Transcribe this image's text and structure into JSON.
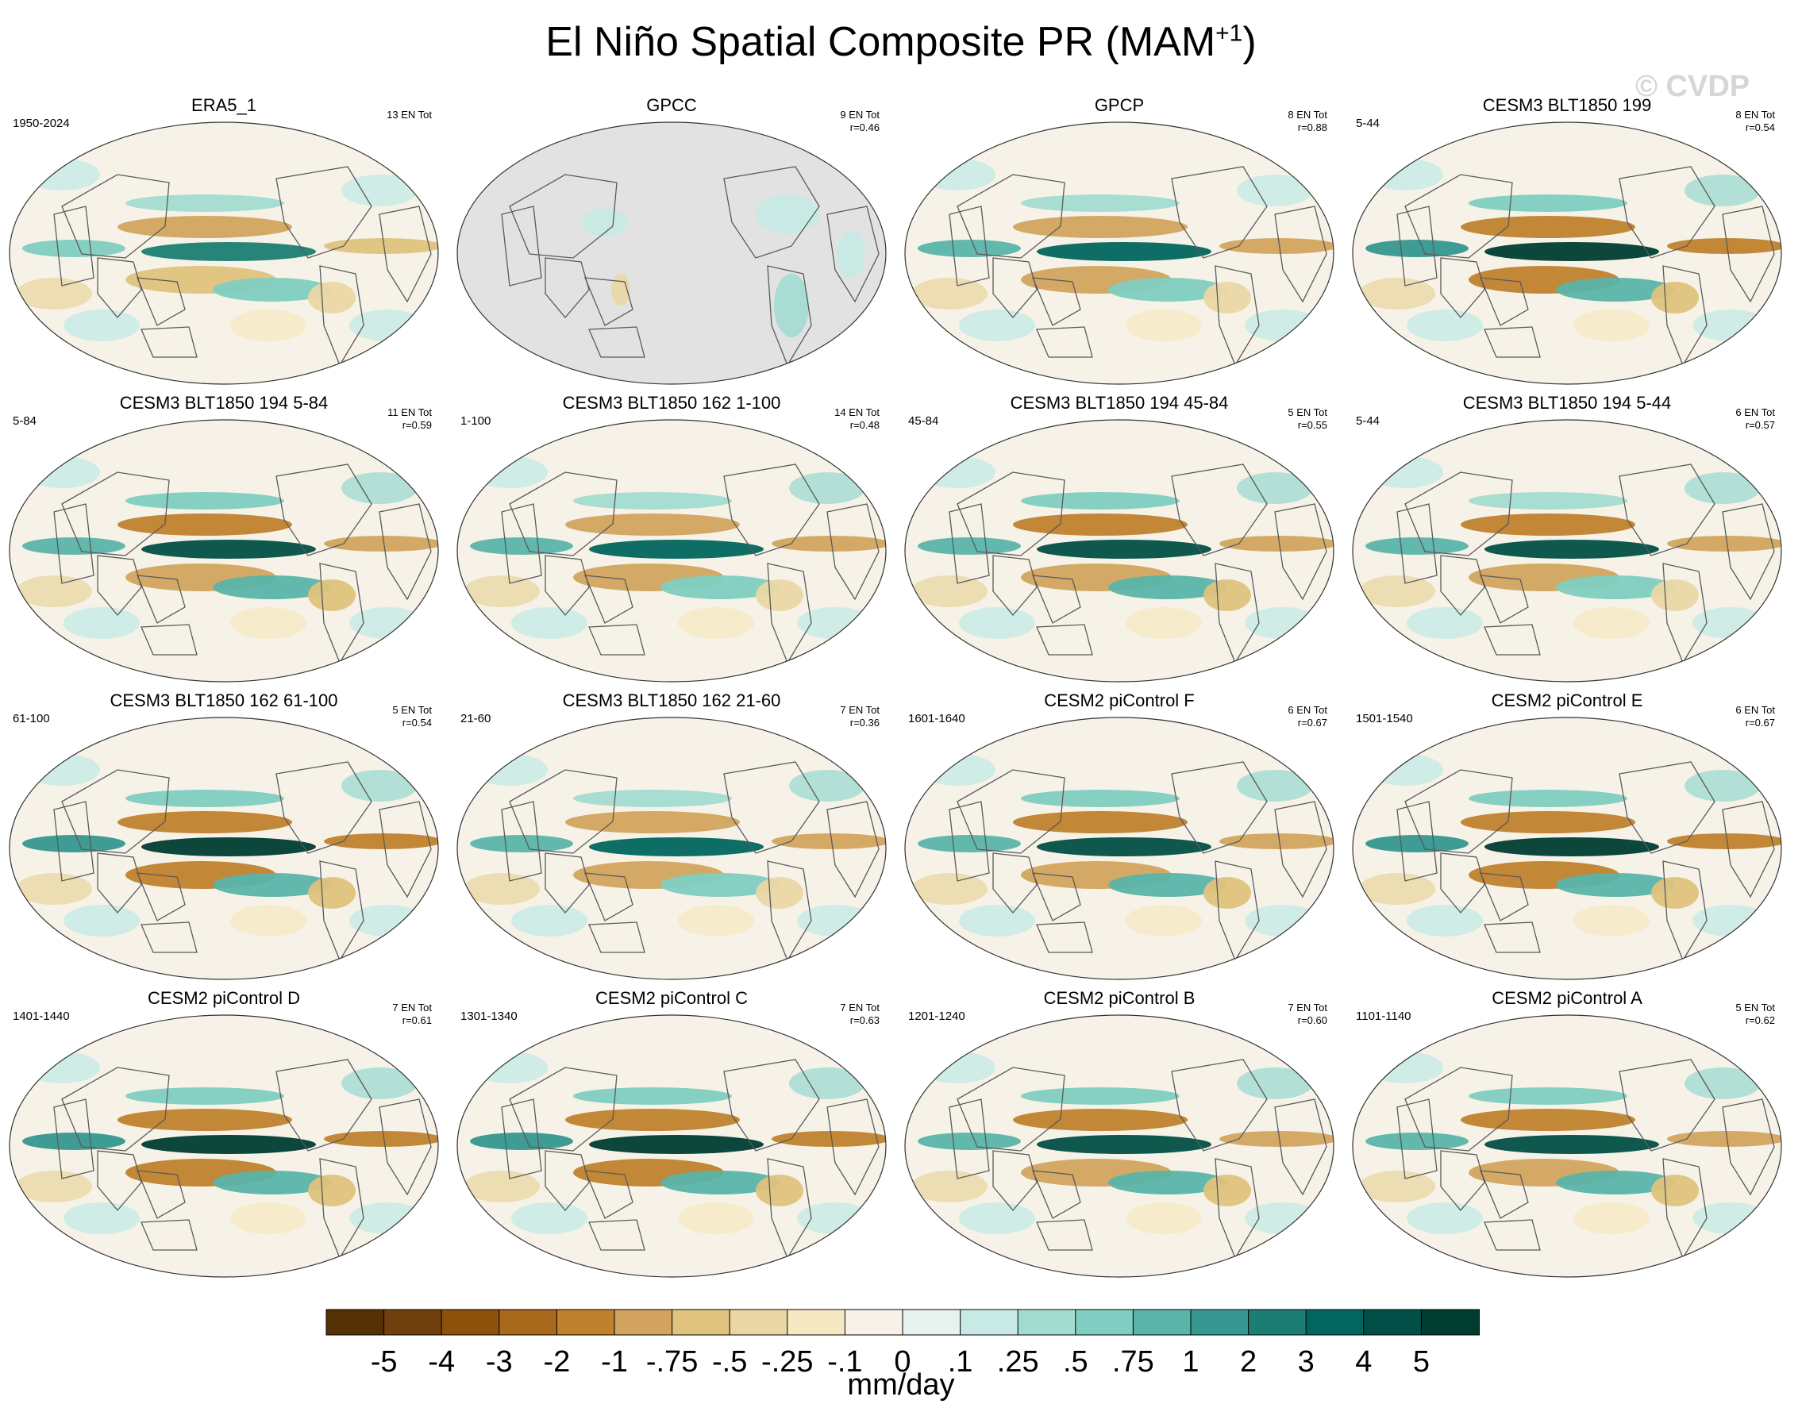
{
  "figure": {
    "title": "El Niño Spatial Composite PR (MAM",
    "title_sup": "+1",
    "title_end": ")",
    "watermark": "© CVDP"
  },
  "chart_data": {
    "type": "heatmap",
    "projection": "robinson-global",
    "variable": "PR",
    "season": "MAM+1",
    "panels": [
      {
        "name": "ERA5_1",
        "years": "1950-2024",
        "en_count": "13 EN Tot",
        "r": "",
        "coverage": "full",
        "strength": 0.75
      },
      {
        "name": "GPCC",
        "years": "",
        "en_count": "9 EN Tot",
        "r": "r=0.46",
        "coverage": "land",
        "strength": 0.6
      },
      {
        "name": "GPCP",
        "years": "",
        "en_count": "8 EN Tot",
        "r": "r=0.88",
        "coverage": "full",
        "strength": 0.8
      },
      {
        "name": "CESM3 BLT1850 199",
        "years": "5-44",
        "en_count": "8 EN Tot",
        "r": "r=0.54",
        "coverage": "full",
        "strength": 1.0
      },
      {
        "name": "CESM3 BLT1850 194 5-84",
        "years": "5-84",
        "en_count": "11 EN Tot",
        "r": "r=0.59",
        "coverage": "full",
        "strength": 0.95
      },
      {
        "name": "CESM3 BLT1850 162 1-100",
        "years": "1-100",
        "en_count": "14 EN Tot",
        "r": "r=0.48",
        "coverage": "full",
        "strength": 0.85
      },
      {
        "name": "CESM3 BLT1850 194 45-84",
        "years": "45-84",
        "en_count": "5 EN Tot",
        "r": "r=0.55",
        "coverage": "full",
        "strength": 0.95
      },
      {
        "name": "CESM3 BLT1850 194 5-44",
        "years": "5-44",
        "en_count": "6 EN Tot",
        "r": "r=0.57",
        "coverage": "full",
        "strength": 0.9
      },
      {
        "name": "CESM3 BLT1850 162 61-100",
        "years": "61-100",
        "en_count": "5 EN Tot",
        "r": "r=0.54",
        "coverage": "full",
        "strength": 1.0
      },
      {
        "name": "CESM3 BLT1850 162 21-60",
        "years": "21-60",
        "en_count": "7 EN Tot",
        "r": "r=0.36",
        "coverage": "full",
        "strength": 0.85
      },
      {
        "name": "CESM2 piControl F",
        "years": "1601-1640",
        "en_count": "6 EN Tot",
        "r": "r=0.67",
        "coverage": "full",
        "strength": 0.95
      },
      {
        "name": "CESM2 piControl E",
        "years": "1501-1540",
        "en_count": "6 EN Tot",
        "r": "r=0.67",
        "coverage": "full",
        "strength": 1.0
      },
      {
        "name": "CESM2 piControl D",
        "years": "1401-1440",
        "en_count": "7 EN Tot",
        "r": "r=0.61",
        "coverage": "full",
        "strength": 1.0
      },
      {
        "name": "CESM2 piControl C",
        "years": "1301-1340",
        "en_count": "7 EN Tot",
        "r": "r=0.63",
        "coverage": "full",
        "strength": 1.0
      },
      {
        "name": "CESM2 piControl B",
        "years": "1201-1240",
        "en_count": "7 EN Tot",
        "r": "r=0.60",
        "coverage": "full",
        "strength": 0.95
      },
      {
        "name": "CESM2 piControl A",
        "years": "1101-1140",
        "en_count": "5 EN Tot",
        "r": "r=0.62",
        "coverage": "full",
        "strength": 0.95
      }
    ],
    "colorbar": {
      "units": "mm/day",
      "labels": [
        "-5",
        "-4",
        "-3",
        "-2",
        "-1",
        "-.75",
        "-.5",
        "-.25",
        "-.1",
        "0",
        ".1",
        ".25",
        ".5",
        ".75",
        "1",
        "2",
        "3",
        "4",
        "5"
      ],
      "colors": [
        "#543005",
        "#6f3f0d",
        "#8c510a",
        "#a8681c",
        "#bf812d",
        "#d2a45f",
        "#dfc27d",
        "#ebd7a5",
        "#f6e8c3",
        "#f6f2e8",
        "#e6f3ef",
        "#c7eae5",
        "#a3dbd1",
        "#80cdc1",
        "#5ab4a9",
        "#35978f",
        "#1b7d73",
        "#01665e",
        "#014f46",
        "#003c30"
      ]
    }
  }
}
